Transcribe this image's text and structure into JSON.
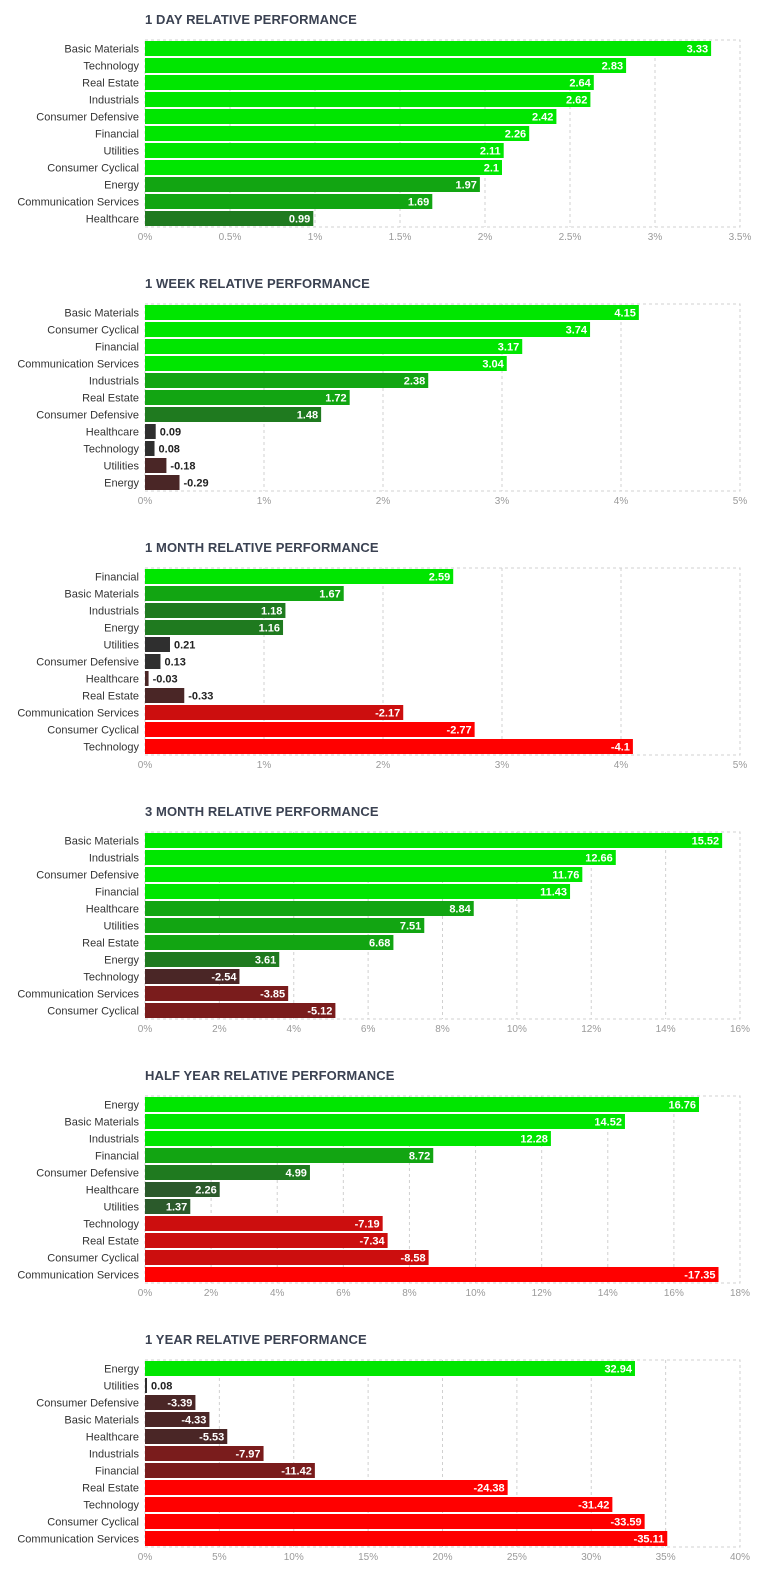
{
  "colors": {
    "strong_green": "#00e600",
    "mid_green": "#12a512",
    "dark_green": "#1f7a1f",
    "deep_green": "#2b5a2b",
    "neutral": "#2f2f2f",
    "dark_red": "#4a2626",
    "mid_red": "#7a1c1c",
    "strong_red": "#cc0e0e",
    "bright_red": "#ff0000"
  },
  "chart_data": [
    {
      "type": "bar",
      "orientation": "horizontal",
      "title": "1 DAY RELATIVE PERFORMANCE",
      "categories": [
        "Basic Materials",
        "Technology",
        "Real Estate",
        "Industrials",
        "Consumer Defensive",
        "Financial",
        "Utilities",
        "Consumer Cyclical",
        "Energy",
        "Communication Services",
        "Healthcare"
      ],
      "values": [
        3.33,
        2.83,
        2.64,
        2.62,
        2.42,
        2.26,
        2.11,
        2.1,
        1.97,
        1.69,
        0.99
      ],
      "value_labels": [
        "3.33",
        "2.83",
        "2.64",
        "2.62",
        "2.42",
        "2.26",
        "2.11",
        "2.1",
        "1.97",
        "1.69",
        "0.99"
      ],
      "xlim": [
        0,
        3.5
      ],
      "ticks": [
        "0%",
        "0.5%",
        "1%",
        "1.5%",
        "2%",
        "2.5%",
        "3%",
        "3.5%"
      ],
      "grid": true
    },
    {
      "type": "bar",
      "orientation": "horizontal",
      "title": "1 WEEK RELATIVE PERFORMANCE",
      "categories": [
        "Basic Materials",
        "Consumer Cyclical",
        "Financial",
        "Communication Services",
        "Industrials",
        "Real Estate",
        "Consumer Defensive",
        "Healthcare",
        "Technology",
        "Utilities",
        "Energy"
      ],
      "values": [
        4.15,
        3.74,
        3.17,
        3.04,
        2.38,
        1.72,
        1.48,
        0.09,
        0.08,
        -0.18,
        -0.29
      ],
      "value_labels": [
        "4.15",
        "3.74",
        "3.17",
        "3.04",
        "2.38",
        "1.72",
        "1.48",
        "0.09",
        "0.08",
        "-0.18",
        "-0.29"
      ],
      "xlim": [
        0,
        5
      ],
      "ticks": [
        "0%",
        "1%",
        "2%",
        "3%",
        "4%",
        "5%"
      ],
      "grid": true
    },
    {
      "type": "bar",
      "orientation": "horizontal",
      "title": "1 MONTH RELATIVE PERFORMANCE",
      "categories": [
        "Financial",
        "Basic Materials",
        "Industrials",
        "Energy",
        "Utilities",
        "Consumer Defensive",
        "Healthcare",
        "Real Estate",
        "Communication Services",
        "Consumer Cyclical",
        "Technology"
      ],
      "values": [
        2.59,
        1.67,
        1.18,
        1.16,
        0.21,
        0.13,
        -0.03,
        -0.33,
        -2.17,
        -2.77,
        -4.1
      ],
      "value_labels": [
        "2.59",
        "1.67",
        "1.18",
        "1.16",
        "0.21",
        "0.13",
        "-0.03",
        "-0.33",
        "-2.17",
        "-2.77",
        "-4.1"
      ],
      "xlim": [
        0,
        5
      ],
      "ticks": [
        "0%",
        "1%",
        "2%",
        "3%",
        "4%",
        "5%"
      ],
      "grid": true
    },
    {
      "type": "bar",
      "orientation": "horizontal",
      "title": "3 MONTH RELATIVE PERFORMANCE",
      "categories": [
        "Basic Materials",
        "Industrials",
        "Consumer Defensive",
        "Financial",
        "Healthcare",
        "Utilities",
        "Real Estate",
        "Energy",
        "Technology",
        "Communication Services",
        "Consumer Cyclical"
      ],
      "values": [
        15.52,
        12.66,
        11.76,
        11.43,
        8.84,
        7.51,
        6.68,
        3.61,
        -2.54,
        -3.85,
        -5.12
      ],
      "value_labels": [
        "15.52",
        "12.66",
        "11.76",
        "11.43",
        "8.84",
        "7.51",
        "6.68",
        "3.61",
        "-2.54",
        "-3.85",
        "-5.12"
      ],
      "xlim": [
        0,
        16
      ],
      "ticks": [
        "0%",
        "2%",
        "4%",
        "6%",
        "8%",
        "10%",
        "12%",
        "14%",
        "16%"
      ],
      "grid": true
    },
    {
      "type": "bar",
      "orientation": "horizontal",
      "title": "HALF YEAR RELATIVE PERFORMANCE",
      "categories": [
        "Energy",
        "Basic Materials",
        "Industrials",
        "Financial",
        "Consumer Defensive",
        "Healthcare",
        "Utilities",
        "Technology",
        "Real Estate",
        "Consumer Cyclical",
        "Communication Services"
      ],
      "values": [
        16.76,
        14.52,
        12.28,
        8.72,
        4.99,
        2.26,
        1.37,
        -7.19,
        -7.34,
        -8.58,
        -17.35
      ],
      "value_labels": [
        "16.76",
        "14.52",
        "12.28",
        "8.72",
        "4.99",
        "2.26",
        "1.37",
        "-7.19",
        "-7.34",
        "-8.58",
        "-17.35"
      ],
      "xlim": [
        0,
        18
      ],
      "ticks": [
        "0%",
        "2%",
        "4%",
        "6%",
        "8%",
        "10%",
        "12%",
        "14%",
        "16%",
        "18%"
      ],
      "grid": true
    },
    {
      "type": "bar",
      "orientation": "horizontal",
      "title": "1 YEAR RELATIVE PERFORMANCE",
      "categories": [
        "Energy",
        "Utilities",
        "Consumer Defensive",
        "Basic Materials",
        "Healthcare",
        "Industrials",
        "Financial",
        "Real Estate",
        "Technology",
        "Consumer Cyclical",
        "Communication Services"
      ],
      "values": [
        32.94,
        0.08,
        -3.39,
        -4.33,
        -5.53,
        -7.97,
        -11.42,
        -24.38,
        -31.42,
        -33.59,
        -35.11
      ],
      "value_labels": [
        "32.94",
        "0.08",
        "-3.39",
        "-4.33",
        "-5.53",
        "-7.97",
        "-11.42",
        "-24.38",
        "-31.42",
        "-33.59",
        "-35.11"
      ],
      "xlim": [
        0,
        40
      ],
      "ticks": [
        "0%",
        "5%",
        "10%",
        "15%",
        "20%",
        "25%",
        "30%",
        "35%",
        "40%"
      ],
      "grid": true
    }
  ]
}
